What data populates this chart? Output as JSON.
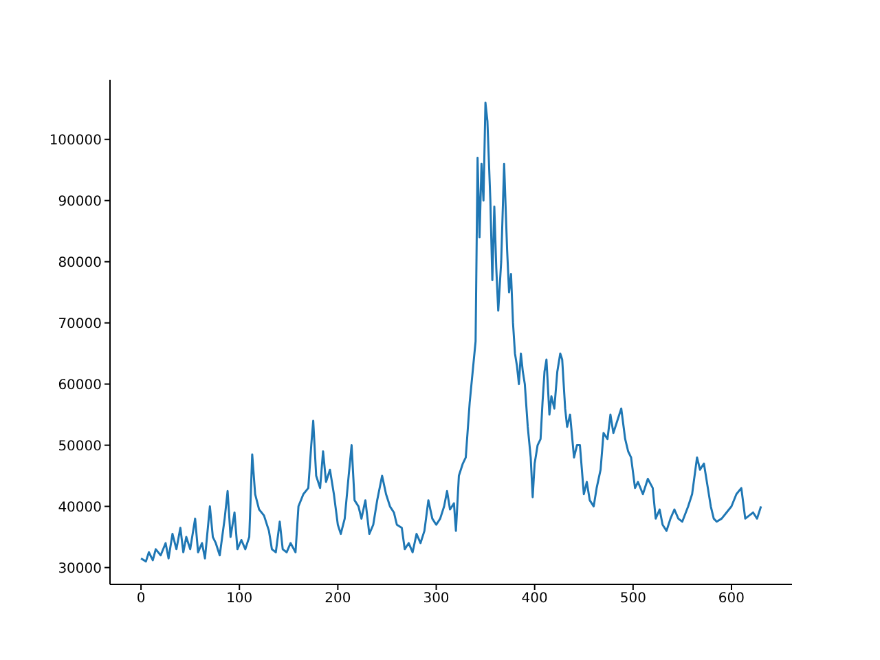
{
  "chart_data": {
    "type": "line",
    "x": [
      0,
      5,
      8,
      12,
      15,
      20,
      25,
      28,
      32,
      36,
      40,
      43,
      46,
      50,
      55,
      58,
      62,
      65,
      70,
      73,
      76,
      80,
      85,
      88,
      91,
      95,
      98,
      102,
      106,
      110,
      113,
      116,
      120,
      125,
      130,
      133,
      137,
      141,
      144,
      148,
      152,
      157,
      160,
      165,
      170,
      173,
      175,
      178,
      182,
      185,
      188,
      192,
      196,
      200,
      203,
      207,
      211,
      214,
      217,
      221,
      224,
      228,
      232,
      236,
      240,
      245,
      249,
      253,
      257,
      260,
      265,
      268,
      272,
      276,
      280,
      284,
      288,
      292,
      296,
      300,
      304,
      308,
      311,
      314,
      318,
      320,
      323,
      327,
      330,
      334,
      337,
      340,
      342,
      344,
      346,
      348,
      350,
      352,
      355,
      357,
      359,
      361,
      363,
      366,
      369,
      372,
      374,
      376,
      378,
      380,
      382,
      384,
      386,
      388,
      390,
      393,
      396,
      398,
      400,
      403,
      406,
      408,
      410,
      412,
      415,
      417,
      420,
      423,
      426,
      428,
      431,
      433,
      436,
      440,
      443,
      446,
      450,
      453,
      456,
      460,
      463,
      467,
      470,
      474,
      477,
      480,
      484,
      488,
      492,
      495,
      498,
      502,
      505,
      510,
      515,
      520,
      523,
      527,
      530,
      534,
      538,
      542,
      546,
      550,
      556,
      560,
      565,
      568,
      572,
      576,
      579,
      582,
      585,
      590,
      595,
      600,
      605,
      610,
      614,
      618,
      622,
      626,
      630
    ],
    "series": [
      {
        "color": "#1f77b4",
        "values": [
          31500,
          31000,
          32500,
          31200,
          33000,
          32000,
          34000,
          31500,
          35500,
          33000,
          36500,
          32500,
          35000,
          33000,
          38000,
          32500,
          34000,
          31500,
          40000,
          35000,
          34000,
          32000,
          38000,
          42500,
          35000,
          39000,
          33000,
          34500,
          33000,
          35000,
          48500,
          42000,
          39500,
          38500,
          36000,
          33000,
          32500,
          37500,
          33000,
          32500,
          34000,
          32500,
          40000,
          42000,
          43000,
          50000,
          54000,
          45000,
          43000,
          49000,
          44000,
          46000,
          42000,
          37000,
          35500,
          38000,
          45000,
          50000,
          41000,
          40000,
          38000,
          41000,
          35500,
          37000,
          41000,
          45000,
          42000,
          40000,
          39000,
          37000,
          36500,
          33000,
          34000,
          32500,
          35500,
          34000,
          36000,
          41000,
          38000,
          37000,
          38000,
          40000,
          42500,
          39500,
          40500,
          36000,
          45000,
          47000,
          48000,
          57000,
          62000,
          67000,
          97000,
          84000,
          96000,
          90000,
          106000,
          103000,
          90000,
          77000,
          89000,
          79000,
          72000,
          80000,
          96000,
          82000,
          75000,
          78000,
          70000,
          65000,
          63000,
          60000,
          65000,
          62000,
          60000,
          53000,
          48000,
          41500,
          47000,
          50000,
          51000,
          57000,
          62000,
          64000,
          55000,
          58000,
          56000,
          62000,
          65000,
          64000,
          56000,
          53000,
          55000,
          48000,
          50000,
          50000,
          42000,
          44000,
          41000,
          40000,
          43000,
          46000,
          52000,
          51000,
          55000,
          52000,
          54000,
          56000,
          51000,
          49000,
          48000,
          43000,
          44000,
          42000,
          44500,
          43000,
          38000,
          39500,
          37000,
          36000,
          38000,
          39500,
          38000,
          37500,
          40000,
          42000,
          48000,
          46000,
          47000,
          43000,
          40000,
          38000,
          37500,
          38000,
          39000,
          40000,
          42000,
          43000,
          38000,
          38500,
          39000,
          38000,
          40000
        ]
      }
    ],
    "xlim": [
      -31.5,
      661.5
    ],
    "xticks": [
      0,
      100,
      200,
      300,
      400,
      500,
      600
    ],
    "ylim": [
      27250,
      109750
    ],
    "yticks": [
      30000,
      40000,
      50000,
      60000,
      70000,
      80000,
      90000,
      100000
    ],
    "grid": false,
    "legend": false,
    "marker": "none",
    "line_style": "solid"
  }
}
